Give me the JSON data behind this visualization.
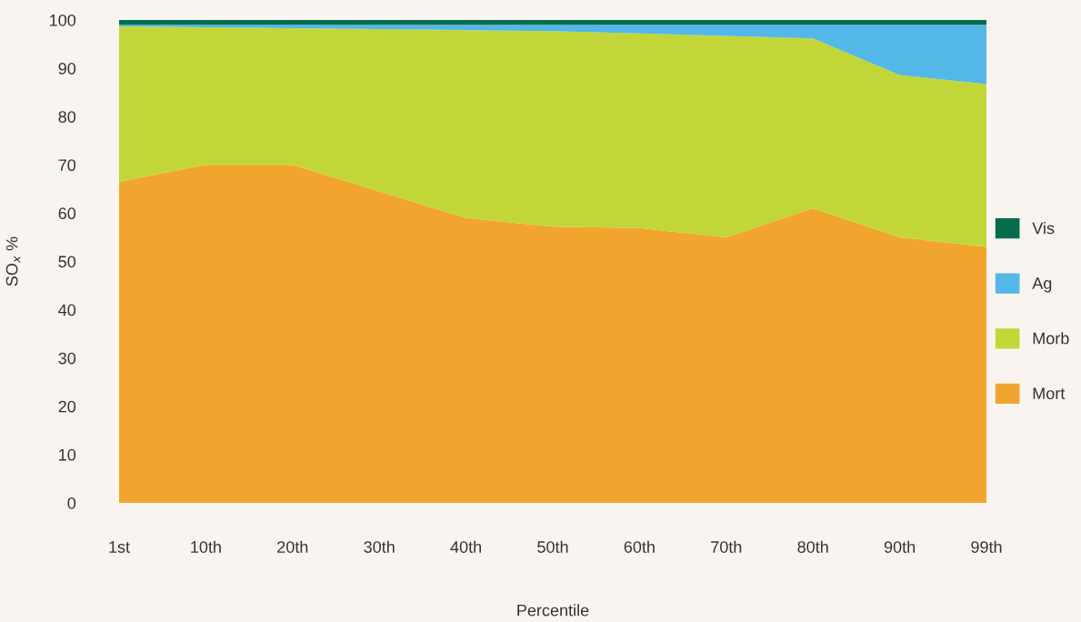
{
  "chart_data": {
    "type": "area",
    "stacked": true,
    "xlabel": "Percentile",
    "ylabel": "SO$_{x}$ %",
    "categories": [
      "1st",
      "10th",
      "20th",
      "30th",
      "40th",
      "50th",
      "60th",
      "70th",
      "80th",
      "90th",
      "99th"
    ],
    "series": [
      {
        "name": "Mort",
        "color": "#f2a52e",
        "values": [
          66.5,
          70.0,
          70.0,
          64.5,
          59.0,
          57.2,
          56.9,
          55.0,
          61.0,
          55.0,
          53.0
        ]
      },
      {
        "name": "Morb",
        "color": "#c2d737",
        "values": [
          32.2,
          28.5,
          28.3,
          33.6,
          38.9,
          40.5,
          40.3,
          41.7,
          35.2,
          33.6,
          33.7
        ]
      },
      {
        "name": "Ag",
        "color": "#53b7e8",
        "values": [
          0.3,
          0.5,
          0.7,
          0.9,
          1.1,
          1.3,
          1.8,
          2.3,
          2.8,
          10.4,
          12.3
        ]
      },
      {
        "name": "Vis",
        "color": "#036d4d",
        "values": [
          1.0,
          1.0,
          1.0,
          1.0,
          1.0,
          1.0,
          1.0,
          1.0,
          1.0,
          1.0,
          1.0
        ]
      }
    ],
    "ylim": [
      0,
      100
    ],
    "yticks": [
      0,
      10,
      20,
      30,
      40,
      50,
      60,
      70,
      80,
      90,
      100
    ],
    "grid": false,
    "legend": "right"
  }
}
